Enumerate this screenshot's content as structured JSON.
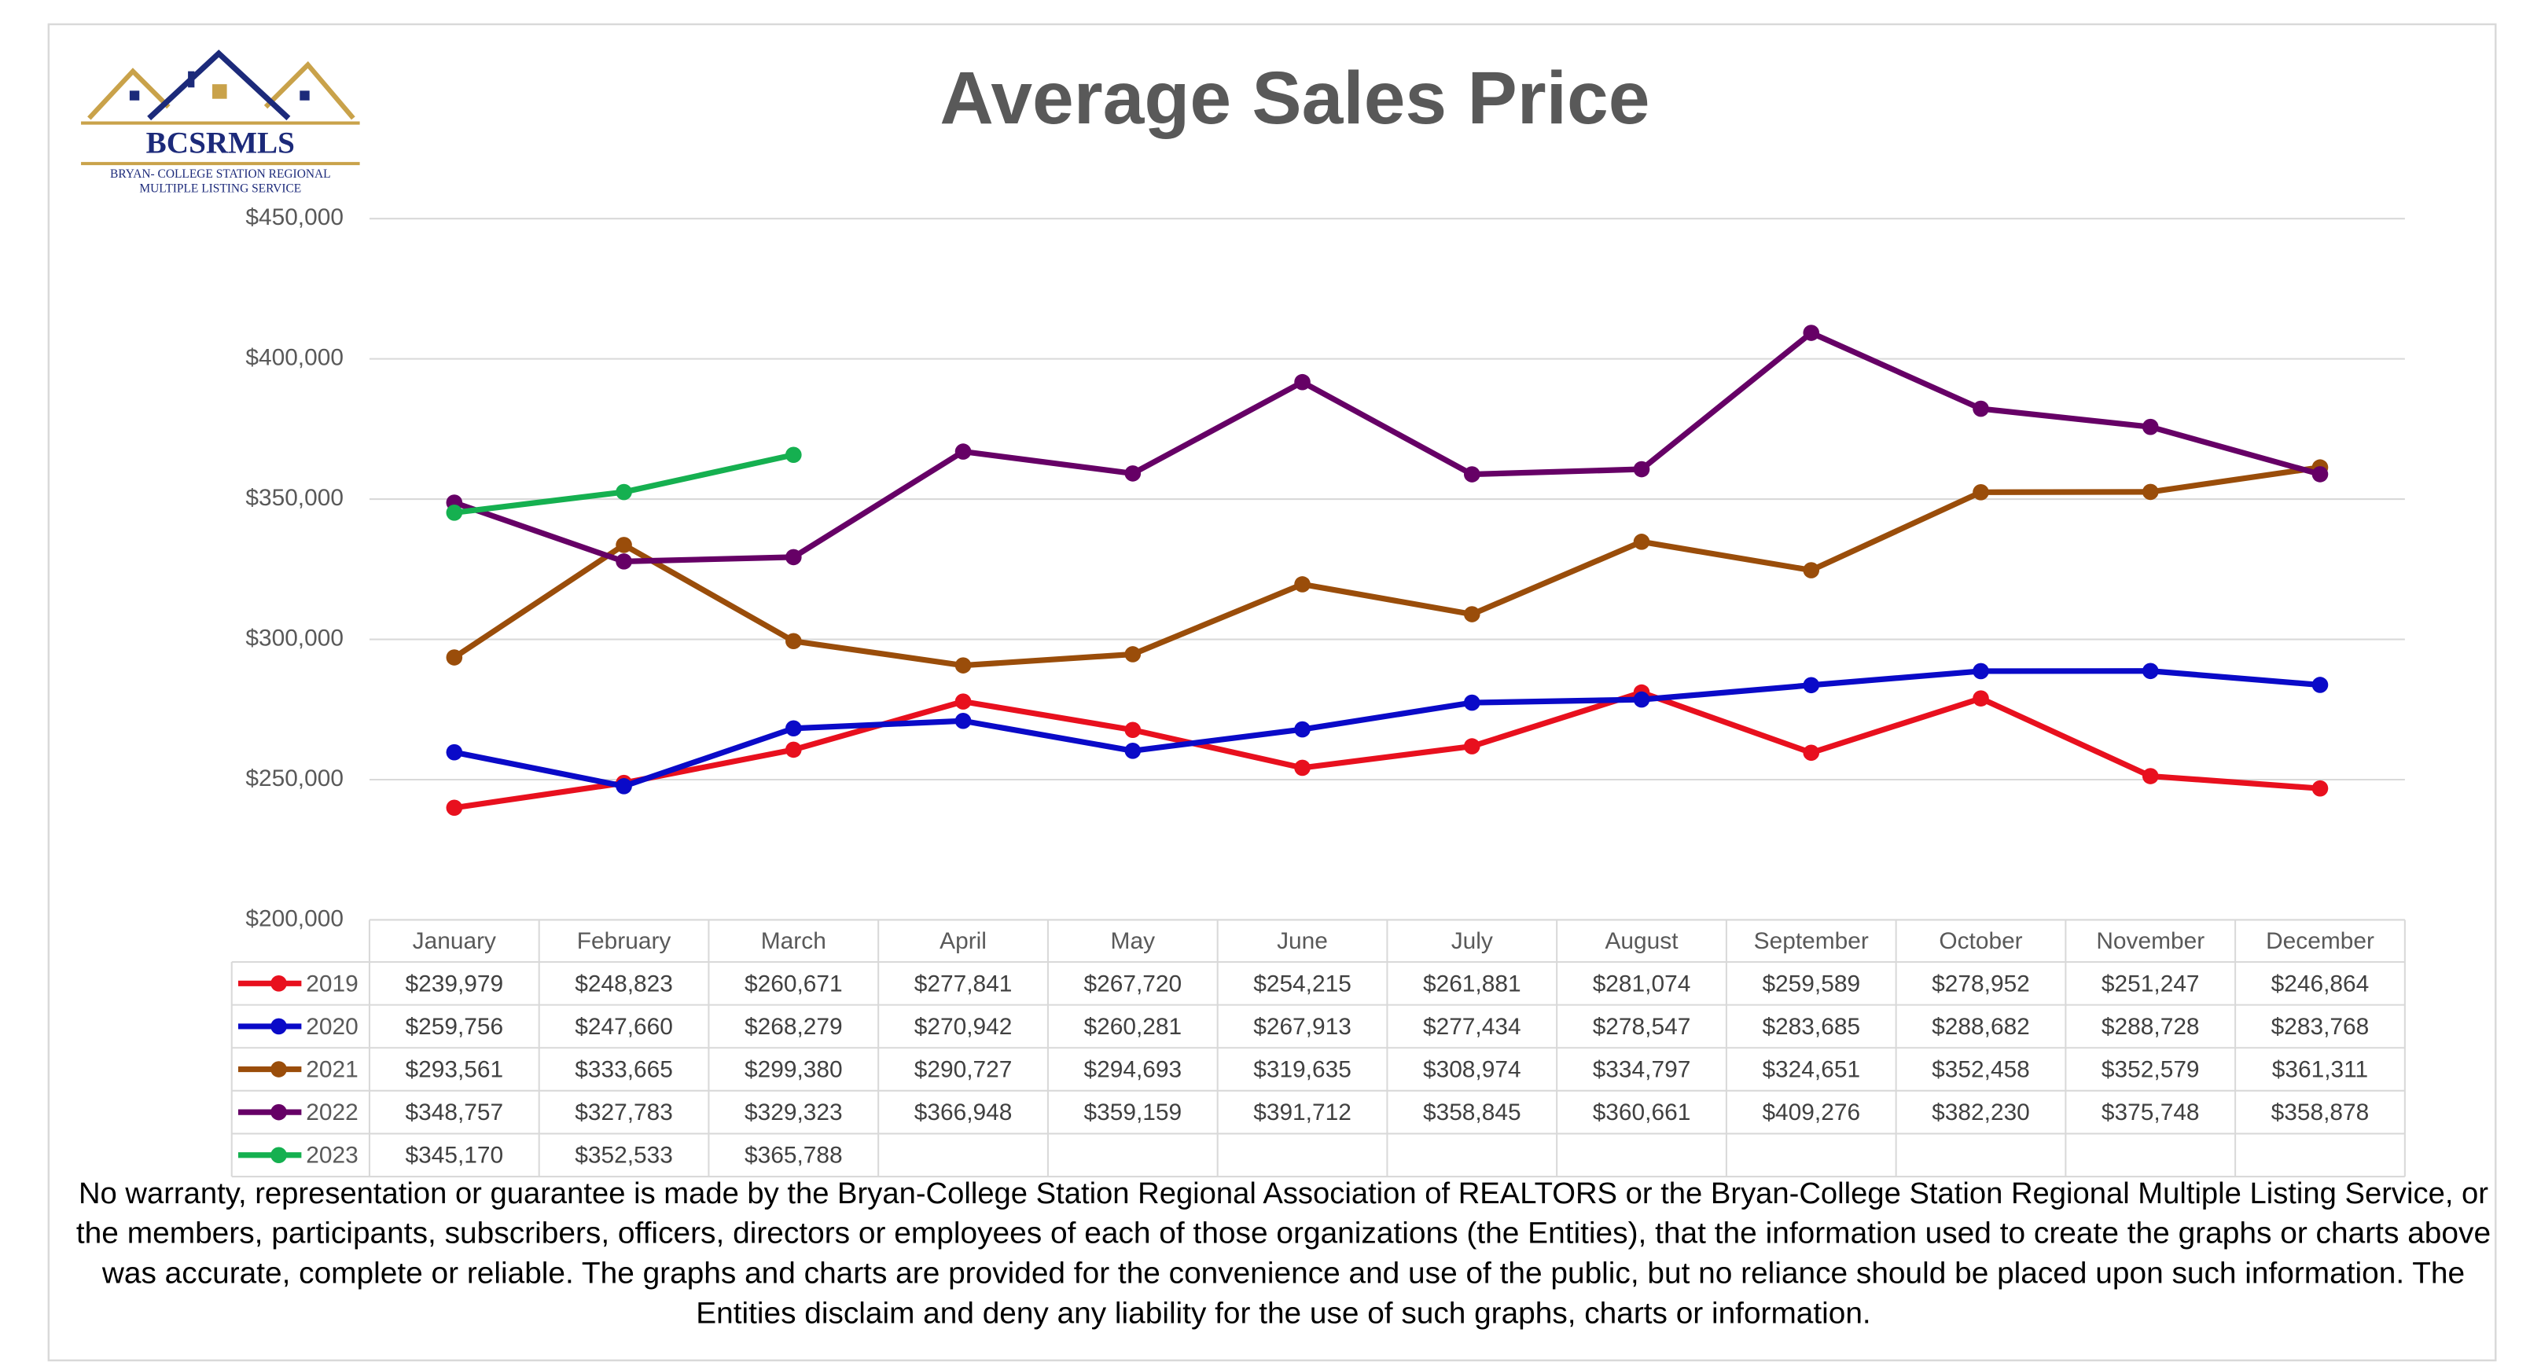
{
  "logo": {
    "name": "BCSRMLS",
    "line1": "BRYAN- COLLEGE STATION REGIONAL",
    "line2": "MULTIPLE LISTING SERVICE"
  },
  "chart_data": {
    "type": "line",
    "title": "Average Sales Price",
    "categories": [
      "January",
      "February",
      "March",
      "April",
      "May",
      "June",
      "July",
      "August",
      "September",
      "October",
      "November",
      "December"
    ],
    "series": [
      {
        "name": "2019",
        "color": "#e8101e",
        "values": [
          239979,
          248823,
          260671,
          277841,
          267720,
          254215,
          261881,
          281074,
          259589,
          278952,
          251247,
          246864
        ],
        "value_labels": [
          "$239,979",
          "$248,823",
          "$260,671",
          "$277,841",
          "$267,720",
          "$254,215",
          "$261,881",
          "$281,074",
          "$259,589",
          "$278,952",
          "$251,247",
          "$246,864"
        ]
      },
      {
        "name": "2020",
        "color": "#0a0ac8",
        "values": [
          259756,
          247660,
          268279,
          270942,
          260281,
          267913,
          277434,
          278547,
          283685,
          288682,
          288728,
          283768
        ],
        "value_labels": [
          "$259,756",
          "$247,660",
          "$268,279",
          "$270,942",
          "$260,281",
          "$267,913",
          "$277,434",
          "$278,547",
          "$283,685",
          "$288,682",
          "$288,728",
          "$283,768"
        ]
      },
      {
        "name": "2021",
        "color": "#9a4d0a",
        "values": [
          293561,
          333665,
          299380,
          290727,
          294693,
          319635,
          308974,
          334797,
          324651,
          352458,
          352579,
          361311
        ],
        "value_labels": [
          "$293,561",
          "$333,665",
          "$299,380",
          "$290,727",
          "$294,693",
          "$319,635",
          "$308,974",
          "$334,797",
          "$324,651",
          "$352,458",
          "$352,579",
          "$361,311"
        ]
      },
      {
        "name": "2022",
        "color": "#660066",
        "values": [
          348757,
          327783,
          329323,
          366948,
          359159,
          391712,
          358845,
          360661,
          409276,
          382230,
          375748,
          358878
        ],
        "value_labels": [
          "$348,757",
          "$327,783",
          "$329,323",
          "$366,948",
          "$359,159",
          "$391,712",
          "$358,845",
          "$360,661",
          "$409,276",
          "$382,230",
          "$375,748",
          "$358,878"
        ]
      },
      {
        "name": "2023",
        "color": "#15b050",
        "values": [
          345170,
          352533,
          365788,
          null,
          null,
          null,
          null,
          null,
          null,
          null,
          null,
          null
        ],
        "value_labels": [
          "$345,170",
          "$352,533",
          "$365,788",
          null,
          null,
          null,
          null,
          null,
          null,
          null,
          null,
          null
        ]
      }
    ],
    "ylim": [
      200000,
      450000
    ],
    "yticks": [
      {
        "value": 200000,
        "label": "$200,000"
      },
      {
        "value": 250000,
        "label": "$250,000"
      },
      {
        "value": 300000,
        "label": "$300,000"
      },
      {
        "value": 350000,
        "label": "$350,000"
      },
      {
        "value": 400000,
        "label": "$400,000"
      },
      {
        "value": 450000,
        "label": "$450,000"
      }
    ],
    "grid": true,
    "note": [
      "No warranty, representation or guarantee is made by the Bryan-College Station Regional Association of REALTORS or the Bryan-College Station Regional Multiple Listing Service, or",
      "the members, participants, subscribers, officers, directors or employees of each of those organizations (the Entities), that the information used to create the graphs or charts above",
      "was accurate, complete or reliable.  The graphs and charts are provided for the convenience and use of the public, but no reliance should be placed upon such information.  The",
      "Entities disclaim and deny any liability for the use of such graphs, charts or information."
    ]
  }
}
